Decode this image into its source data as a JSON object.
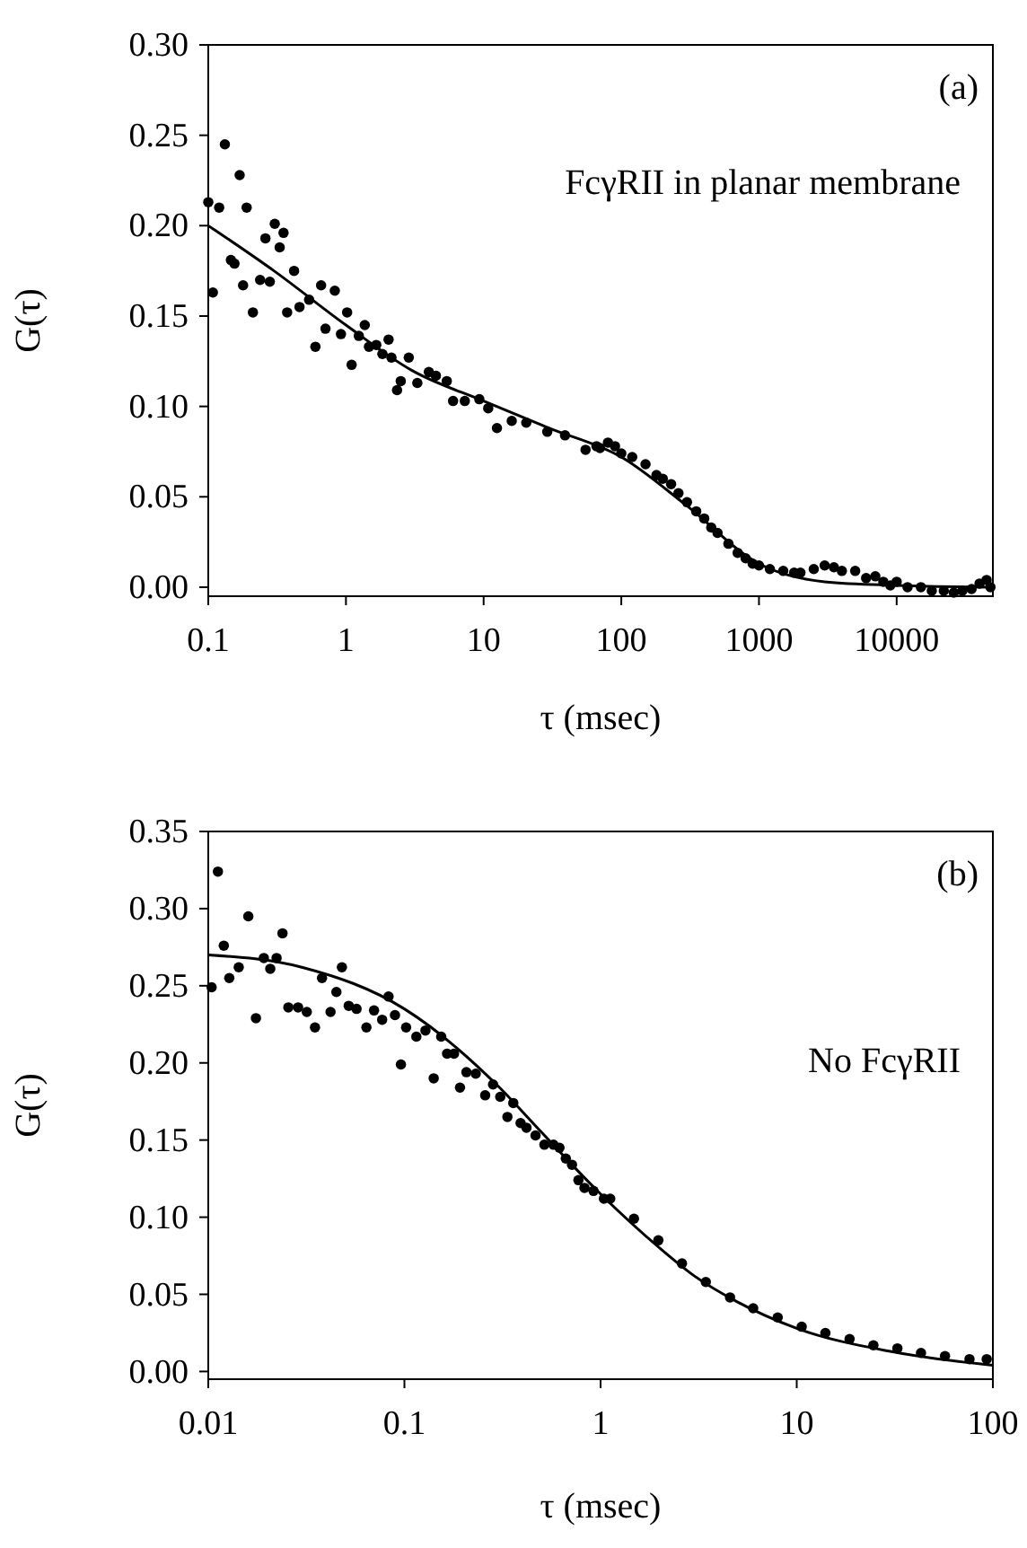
{
  "chart_data": [
    {
      "type": "scatter",
      "xlabel": "τ (msec)",
      "ylabel": "G(τ)",
      "log": "x",
      "xlim": [
        0.1,
        50000
      ],
      "xticks": [
        0.1,
        1,
        10,
        100,
        1000,
        10000
      ],
      "ylim": [
        -0.005,
        0.3
      ],
      "yticks": [
        {
          "value": 0,
          "label": "0.00"
        },
        0.05,
        {
          "value": 0.1,
          "label": "0.10"
        },
        0.15,
        {
          "value": 0.2,
          "label": "0.20"
        },
        0.25,
        {
          "value": 0.3,
          "label": "0.30"
        }
      ],
      "grid": false,
      "annotations": [
        "(a)",
        "FcγRII in planar membrane"
      ],
      "series": [
        {
          "marker": "circle",
          "color": "#000000",
          "x": [
            0.1,
            0.108,
            0.12,
            0.132,
            0.146,
            0.155,
            0.169,
            0.179,
            0.19,
            0.211,
            0.238,
            0.26,
            0.28,
            0.304,
            0.33,
            0.352,
            0.374,
            0.42,
            0.46,
            0.54,
            0.6,
            0.66,
            0.71,
            0.83,
            0.92,
            1.02,
            1.1,
            1.24,
            1.37,
            1.47,
            1.66,
            1.84,
            2.04,
            2.14,
            2.35,
            2.5,
            2.86,
            3.3,
            4.0,
            4.5,
            5.4,
            6.0,
            7.3,
            9.3,
            10.8,
            12.5,
            16,
            20.4,
            29,
            39,
            55,
            66,
            70,
            80,
            90,
            100,
            120,
            150,
            180,
            200,
            230,
            260,
            300,
            350,
            400,
            450,
            500,
            600,
            700,
            800,
            900,
            1000,
            1200,
            1500,
            1800,
            2000,
            2500,
            3000,
            3500,
            4000,
            5000,
            6000,
            7000,
            8000,
            9000,
            10000,
            12000,
            15000,
            18000,
            22000,
            26000,
            30000,
            35000,
            40000,
            45000,
            48000
          ],
          "values": [
            0.213,
            0.163,
            0.21,
            0.245,
            0.181,
            0.179,
            0.228,
            0.167,
            0.21,
            0.152,
            0.17,
            0.193,
            0.169,
            0.201,
            0.188,
            0.196,
            0.152,
            0.175,
            0.155,
            0.159,
            0.133,
            0.167,
            0.143,
            0.164,
            0.14,
            0.152,
            0.123,
            0.139,
            0.145,
            0.133,
            0.134,
            0.129,
            0.137,
            0.127,
            0.109,
            0.114,
            0.127,
            0.113,
            0.119,
            0.117,
            0.114,
            0.103,
            0.103,
            0.104,
            0.099,
            0.088,
            0.092,
            0.091,
            0.086,
            0.084,
            0.076,
            0.078,
            0.077,
            0.08,
            0.078,
            0.074,
            0.072,
            0.068,
            0.062,
            0.06,
            0.057,
            0.052,
            0.047,
            0.042,
            0.038,
            0.033,
            0.03,
            0.024,
            0.019,
            0.016,
            0.013,
            0.012,
            0.01,
            0.009,
            0.008,
            0.008,
            0.01,
            0.012,
            0.011,
            0.009,
            0.009,
            0.005,
            0.006,
            0.003,
            0.001,
            0.003,
            0.0,
            0.0,
            -0.002,
            -0.002,
            -0.003,
            -0.002,
            -0.001,
            0.002,
            0.004,
            0.0
          ]
        },
        {
          "type": "line",
          "line_style": "solid",
          "color": "#000000",
          "x": [
            0.1,
            0.3,
            1,
            3,
            10,
            30,
            100,
            300,
            1000,
            3000,
            10000,
            50000
          ],
          "values": [
            0.2,
            0.175,
            0.145,
            0.12,
            0.103,
            0.088,
            0.072,
            0.045,
            0.013,
            0.003,
            0.001,
            0.0
          ]
        }
      ]
    },
    {
      "type": "scatter",
      "xlabel": "τ (msec)",
      "ylabel": "G(τ)",
      "log": "x",
      "xlim": [
        0.01,
        100
      ],
      "xticks": [
        0.01,
        0.1,
        1,
        10,
        100
      ],
      "ylim": [
        -0.005,
        0.35
      ],
      "yticks": [
        {
          "value": 0,
          "label": "0.00"
        },
        0.05,
        {
          "value": 0.1,
          "label": "0.10"
        },
        0.15,
        {
          "value": 0.2,
          "label": "0.20"
        },
        0.25,
        {
          "value": 0.3,
          "label": "0.30"
        },
        0.35
      ],
      "grid": false,
      "annotations": [
        "(b)",
        "No FcγRII"
      ],
      "series": [
        {
          "marker": "circle",
          "color": "#000000",
          "x": [
            0.0104,
            0.0112,
            0.012,
            0.0128,
            0.0143,
            0.016,
            0.0175,
            0.0192,
            0.0207,
            0.0223,
            0.0239,
            0.0256,
            0.0287,
            0.0318,
            0.035,
            0.038,
            0.042,
            0.045,
            0.048,
            0.052,
            0.057,
            0.064,
            0.07,
            0.077,
            0.083,
            0.0895,
            0.096,
            0.102,
            0.115,
            0.128,
            0.141,
            0.154,
            0.165,
            0.179,
            0.192,
            0.207,
            0.231,
            0.258,
            0.283,
            0.308,
            0.335,
            0.359,
            0.391,
            0.419,
            0.466,
            0.517,
            0.575,
            0.617,
            0.665,
            0.715,
            0.771,
            0.828,
            0.92,
            1.04,
            1.12,
            1.48,
            1.97,
            2.6,
            3.44,
            4.57,
            6.0,
            8.0,
            10.6,
            14,
            18.6,
            24.6,
            32.6,
            43,
            57,
            76,
            93
          ],
          "values": [
            0.249,
            0.324,
            0.276,
            0.255,
            0.262,
            0.295,
            0.229,
            0.268,
            0.261,
            0.268,
            0.284,
            0.236,
            0.236,
            0.233,
            0.223,
            0.255,
            0.233,
            0.246,
            0.262,
            0.237,
            0.235,
            0.223,
            0.234,
            0.228,
            0.243,
            0.231,
            0.199,
            0.223,
            0.217,
            0.221,
            0.19,
            0.217,
            0.206,
            0.206,
            0.184,
            0.194,
            0.193,
            0.179,
            0.186,
            0.178,
            0.165,
            0.174,
            0.161,
            0.158,
            0.153,
            0.147,
            0.147,
            0.145,
            0.138,
            0.134,
            0.124,
            0.119,
            0.117,
            0.112,
            0.112,
            0.099,
            0.085,
            0.07,
            0.058,
            0.048,
            0.041,
            0.035,
            0.029,
            0.025,
            0.021,
            0.017,
            0.015,
            0.012,
            0.01,
            0.008,
            0.008
          ]
        },
        {
          "type": "line",
          "line_style": "solid",
          "color": "#000000",
          "x": [
            0.01,
            0.03,
            0.1,
            0.3,
            0.5,
            1,
            2,
            3,
            5,
            10,
            30,
            100
          ],
          "values": [
            0.27,
            0.262,
            0.235,
            0.185,
            0.155,
            0.115,
            0.08,
            0.062,
            0.045,
            0.028,
            0.013,
            0.004
          ]
        }
      ]
    }
  ]
}
